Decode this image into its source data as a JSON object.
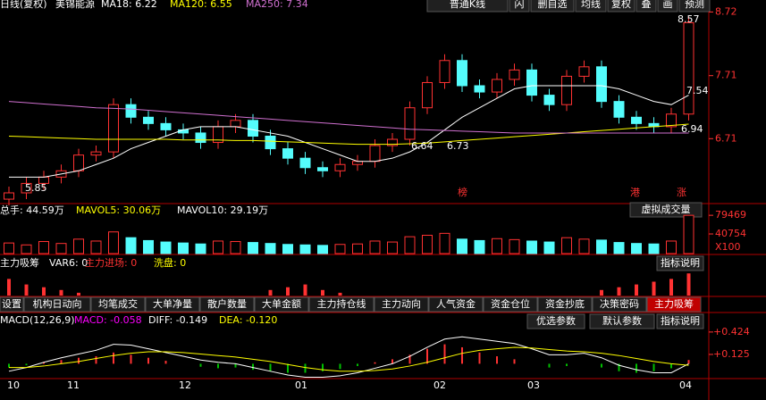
{
  "header": {
    "period": "日线(复权)",
    "stock": "美锦能源",
    "ma18": "MA18: 6.22",
    "ma120": "MA120: 6.55",
    "ma250": "MA250: 7.34",
    "buttons": [
      "普通K线",
      "闪",
      "删自选",
      "均线",
      "复权",
      "叠",
      "画",
      "预测"
    ]
  },
  "main": {
    "ylim": [
      5.68,
      8.91
    ],
    "yticks": [
      8.72,
      7.71,
      6.71
    ],
    "open": [
      5.75,
      5.85,
      6.0,
      6.1,
      6.2,
      6.45,
      6.5,
      7.25,
      7.05,
      6.95,
      6.85,
      6.8,
      6.65,
      6.9,
      7.0,
      6.75,
      6.55,
      6.4,
      6.25,
      6.2,
      6.3,
      6.35,
      6.6,
      6.7,
      7.2,
      7.6,
      7.95,
      7.55,
      7.45,
      7.65,
      7.8,
      7.4,
      7.25,
      7.7,
      7.85,
      7.3,
      7.05,
      6.95,
      6.9,
      7.1
    ],
    "close": [
      5.85,
      6.0,
      6.1,
      6.2,
      6.45,
      6.5,
      7.25,
      7.05,
      6.95,
      6.85,
      6.8,
      6.65,
      6.9,
      7.0,
      6.75,
      6.55,
      6.4,
      6.25,
      6.2,
      6.3,
      6.35,
      6.6,
      6.7,
      7.2,
      7.6,
      7.95,
      7.55,
      7.45,
      7.65,
      7.8,
      7.4,
      7.25,
      7.7,
      7.85,
      7.3,
      7.05,
      6.95,
      6.9,
      7.1,
      8.55
    ],
    "high": [
      5.95,
      6.1,
      6.2,
      6.3,
      6.55,
      6.6,
      7.35,
      7.35,
      7.15,
      7.05,
      6.95,
      6.9,
      7.0,
      7.1,
      7.1,
      6.85,
      6.65,
      6.5,
      6.35,
      6.4,
      6.45,
      6.7,
      6.8,
      7.3,
      7.7,
      8.05,
      8.05,
      7.65,
      7.75,
      7.9,
      7.9,
      7.5,
      7.8,
      7.95,
      7.95,
      7.4,
      7.15,
      7.05,
      7.2,
      8.65
    ],
    "low": [
      5.65,
      5.75,
      5.9,
      6.0,
      6.1,
      6.35,
      6.4,
      6.95,
      6.85,
      6.75,
      6.7,
      6.55,
      6.55,
      6.8,
      6.65,
      6.45,
      6.3,
      6.15,
      6.1,
      6.1,
      6.2,
      6.25,
      6.5,
      6.6,
      7.1,
      7.5,
      7.45,
      7.35,
      7.35,
      7.55,
      7.3,
      7.15,
      7.15,
      7.6,
      7.2,
      6.95,
      6.85,
      6.8,
      6.8,
      7.0
    ],
    "lines": [
      {
        "color": "#ffffff",
        "values": [
          6.1,
          6.1,
          6.1,
          6.15,
          6.2,
          6.3,
          6.4,
          6.55,
          6.65,
          6.75,
          6.85,
          6.9,
          6.9,
          6.9,
          6.85,
          6.8,
          6.75,
          6.65,
          6.55,
          6.45,
          6.35,
          6.35,
          6.4,
          6.5,
          6.65,
          6.85,
          7.05,
          7.2,
          7.35,
          7.5,
          7.55,
          7.55,
          7.55,
          7.55,
          7.55,
          7.5,
          7.4,
          7.3,
          7.25,
          7.4
        ]
      },
      {
        "color": "#ffff00",
        "values": [
          6.75,
          6.74,
          6.73,
          6.72,
          6.71,
          6.7,
          6.7,
          6.7,
          6.7,
          6.7,
          6.69,
          6.69,
          6.69,
          6.68,
          6.68,
          6.67,
          6.66,
          6.65,
          6.64,
          6.63,
          6.62,
          6.62,
          6.62,
          6.63,
          6.64,
          6.66,
          6.68,
          6.7,
          6.72,
          6.74,
          6.76,
          6.78,
          6.8,
          6.82,
          6.84,
          6.86,
          6.88,
          6.9,
          6.92,
          6.94
        ]
      },
      {
        "color": "#d070d0",
        "values": [
          7.3,
          7.28,
          7.26,
          7.24,
          7.22,
          7.2,
          7.19,
          7.18,
          7.16,
          7.14,
          7.12,
          7.1,
          7.08,
          7.06,
          7.04,
          7.02,
          7.0,
          6.98,
          6.96,
          6.94,
          6.92,
          6.9,
          6.88,
          6.86,
          6.85,
          6.84,
          6.83,
          6.82,
          6.81,
          6.8,
          6.8,
          6.8,
          6.8,
          6.8,
          6.8,
          6.8,
          6.8,
          6.8,
          6.8,
          6.8
        ]
      }
    ],
    "annotations": [
      "8.57",
      "7.54",
      "6.94",
      "6.64",
      "6.73",
      "5.85",
      "榜",
      "港",
      "涨"
    ]
  },
  "volume": {
    "total": "总手: 44.59万",
    "mavol5": "MAVOL5: 30.06万",
    "mavol10": "MAVOL10: 29.19万",
    "button": "虚拟成交量",
    "unit": "X100",
    "ylim": [
      0,
      89000
    ],
    "yticks": [
      79469,
      40754
    ],
    "values": [
      22000,
      18000,
      25000,
      21000,
      30000,
      26000,
      45000,
      33000,
      27000,
      24000,
      22000,
      20000,
      26000,
      25000,
      23000,
      21000,
      19000,
      18000,
      17000,
      19000,
      20000,
      26000,
      24000,
      35000,
      38000,
      42000,
      30000,
      27000,
      31000,
      29000,
      26000,
      24000,
      33000,
      30000,
      28000,
      23000,
      21000,
      20000,
      26000,
      79469
    ]
  },
  "indicator": {
    "name": "主力吸筹",
    "var6": "VAR6: 0",
    "enter": "主力进场: 0",
    "wash": "洗盘: 0",
    "button": "指标说明",
    "ylim": [
      0,
      50
    ],
    "values": [
      30,
      20,
      15,
      10,
      5,
      0,
      0,
      0,
      0,
      0,
      0,
      0,
      0,
      0,
      0,
      10,
      15,
      20,
      10,
      5,
      0,
      0,
      0,
      0,
      0,
      0,
      0,
      0,
      0,
      0,
      0,
      0,
      0,
      0,
      10,
      15,
      20,
      25,
      30,
      40
    ]
  },
  "tabs": [
    "设置",
    "机构日动向",
    "均笔成交",
    "大单净量",
    "散户数量",
    "大单金额",
    "主力持仓线",
    "主力动向",
    "人气资金",
    "资金仓位",
    "资金抄底",
    "决策密码",
    "主力吸筹"
  ],
  "macd": {
    "name": "MACD(12,26,9)",
    "macd": "MACD: -0.058",
    "diff": "DIFF: -0.149",
    "dea": "DEA: -0.120",
    "buttons": [
      "优选参数",
      "默认参数",
      "指标说明"
    ],
    "ylim": [
      -0.15,
      0.47
    ],
    "yticks": [
      {
        "value": 0.424,
        "label": "+0.424"
      },
      {
        "value": 0.125,
        "label": "+0.125"
      }
    ],
    "hist": [
      -0.05,
      -0.02,
      0.02,
      0.05,
      0.08,
      0.1,
      0.15,
      0.12,
      0.08,
      0.04,
      0.0,
      -0.04,
      -0.06,
      -0.05,
      -0.08,
      -0.1,
      -0.12,
      -0.12,
      -0.1,
      -0.07,
      -0.03,
      0.02,
      0.06,
      0.12,
      0.2,
      0.26,
      0.22,
      0.15,
      0.1,
      0.06,
      0.0,
      -0.05,
      -0.03,
      0.0,
      -0.05,
      -0.1,
      -0.12,
      -0.1,
      -0.06,
      0.05
    ],
    "diff_values": [
      -0.1,
      -0.05,
      0.02,
      0.08,
      0.13,
      0.18,
      0.26,
      0.25,
      0.2,
      0.15,
      0.1,
      0.05,
      0.02,
      0.0,
      -0.05,
      -0.1,
      -0.15,
      -0.18,
      -0.18,
      -0.16,
      -0.12,
      -0.06,
      0.0,
      0.1,
      0.22,
      0.33,
      0.36,
      0.33,
      0.3,
      0.27,
      0.2,
      0.12,
      0.12,
      0.14,
      0.08,
      -0.02,
      -0.08,
      -0.12,
      -0.12,
      0.0
    ],
    "dea_values": [
      -0.05,
      -0.05,
      -0.03,
      0.0,
      0.03,
      0.07,
      0.11,
      0.14,
      0.16,
      0.16,
      0.15,
      0.13,
      0.11,
      0.09,
      0.06,
      0.03,
      -0.01,
      -0.05,
      -0.08,
      -0.1,
      -0.1,
      -0.09,
      -0.07,
      -0.03,
      0.02,
      0.08,
      0.14,
      0.18,
      0.2,
      0.22,
      0.21,
      0.19,
      0.17,
      0.16,
      0.14,
      0.11,
      0.07,
      0.03,
      0.0,
      -0.02
    ]
  },
  "months": [
    "10",
    "11",
    "12",
    "01",
    "02",
    "03",
    "04"
  ]
}
